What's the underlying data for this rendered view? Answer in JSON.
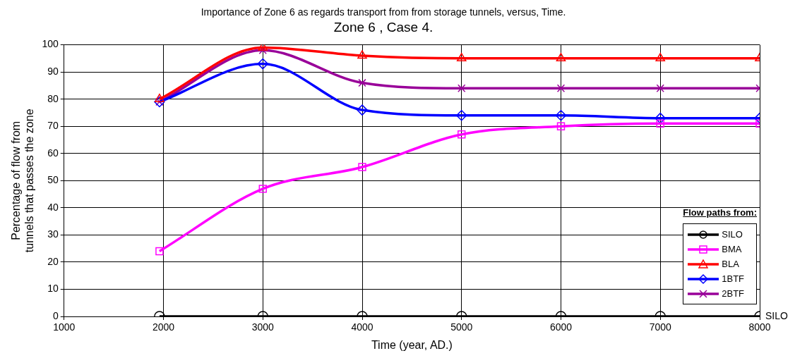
{
  "chart_data": {
    "type": "line",
    "title": "Importance of Zone 6 as regards transport from from storage tunnels, versus, Time.",
    "subtitle": "Zone 6 , Case 4.",
    "xlabel": "Time (year, AD.)",
    "ylabel": "Percentage of flow from tunnels that passes the zone",
    "legend_title": "Flow paths from:",
    "x": [
      1960,
      3000,
      4000,
      5000,
      6000,
      7000,
      8000
    ],
    "series": [
      {
        "name": "SILO",
        "color": "#000000",
        "marker": "circle",
        "values": [
          0,
          0,
          0,
          0,
          0,
          0,
          0
        ]
      },
      {
        "name": "BMA",
        "color": "#ff00ff",
        "marker": "square",
        "values": [
          24,
          47,
          55,
          67,
          70,
          71,
          71
        ]
      },
      {
        "name": "BLA",
        "color": "#ff0000",
        "marker": "triangle",
        "values": [
          80,
          99,
          96,
          95,
          95,
          95,
          95
        ]
      },
      {
        "name": "1BTF",
        "color": "#0000ff",
        "marker": "diamond",
        "values": [
          79,
          93,
          76,
          74,
          74,
          73,
          73
        ]
      },
      {
        "name": "2BTF",
        "color": "#990099",
        "marker": "cross",
        "values": [
          79,
          98,
          86,
          84,
          84,
          84,
          84
        ]
      }
    ],
    "xlim": [
      1000,
      8000
    ],
    "xticks": [
      1000,
      2000,
      3000,
      4000,
      5000,
      6000,
      7000,
      8000
    ],
    "ylim": [
      0,
      100
    ],
    "yticks": [
      0,
      10,
      20,
      30,
      40,
      50,
      60,
      70,
      80,
      90,
      100
    ],
    "grid": true,
    "legend": "bottom right",
    "line_style": "solid",
    "annotations": [
      {
        "text": "SILO",
        "x": 8000,
        "y": 0
      }
    ]
  }
}
